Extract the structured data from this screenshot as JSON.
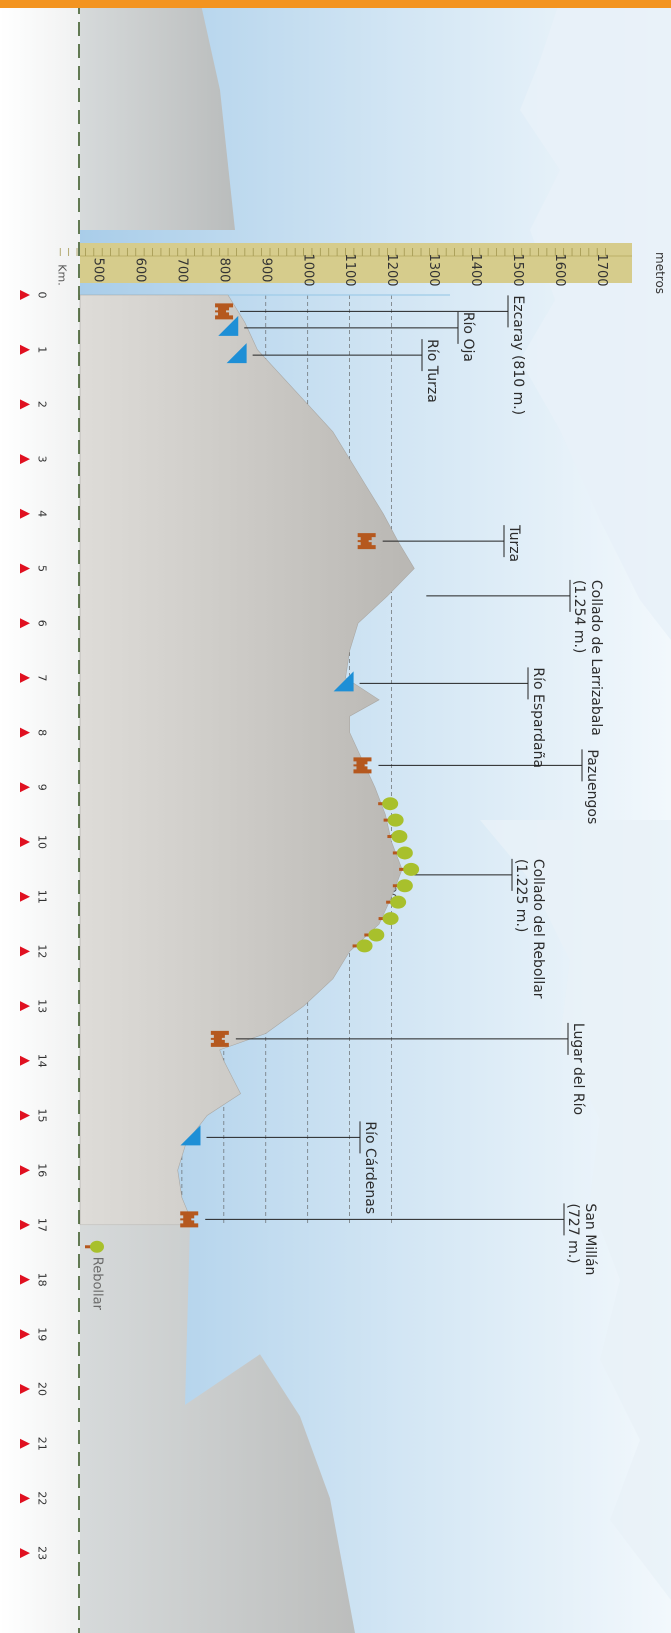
{
  "chart_data": {
    "type": "area",
    "orientation": "rotated-90",
    "y_unit_label": "metros",
    "x_unit_label": "Km.",
    "ylim": [
      400,
      1750
    ],
    "xlim": [
      0,
      23.5
    ],
    "y_ticks": [
      500,
      600,
      700,
      800,
      900,
      1000,
      1100,
      1200,
      1300,
      1400,
      1500,
      1600,
      1700
    ],
    "inner_y_ticks": [
      500,
      600,
      700,
      800,
      900,
      1000,
      1100,
      1200
    ],
    "x_ticks": [
      0,
      1,
      2,
      3,
      4,
      5,
      6,
      7,
      8,
      9,
      10,
      11,
      12,
      13,
      14,
      15,
      16,
      17,
      18,
      19,
      20,
      21,
      22,
      23
    ],
    "gridlines": [
      500,
      600,
      700,
      800,
      900,
      1000,
      1100,
      1200
    ],
    "x": [
      0,
      0.5,
      1,
      1.5,
      2,
      2.5,
      3,
      3.5,
      4,
      4.5,
      5,
      5.5,
      6,
      6.5,
      7,
      7.4,
      7.7,
      8,
      8.5,
      9,
      9.5,
      10,
      10.5,
      11,
      11.5,
      12,
      12.5,
      13,
      13.5,
      13.8,
      14,
      14.3,
      14.6,
      15,
      15.5,
      16,
      16.5,
      17
    ],
    "elevation": [
      810,
      850,
      880,
      940,
      1000,
      1060,
      1100,
      1140,
      1180,
      1215,
      1254,
      1190,
      1120,
      1100,
      1090,
      1170,
      1100,
      1100,
      1130,
      1160,
      1185,
      1200,
      1225,
      1200,
      1170,
      1100,
      1060,
      990,
      900,
      790,
      800,
      820,
      840,
      760,
      710,
      690,
      700,
      727
    ],
    "annotations": [
      {
        "text": "Ezcaray (810 m.)",
        "km": 0.3,
        "elev": 810,
        "icon": "town"
      },
      {
        "text": "Río Oja",
        "km": 0.6,
        "elev": 820,
        "icon": "river"
      },
      {
        "text": "Río Turza",
        "km": 1.1,
        "elev": 840,
        "icon": "river"
      },
      {
        "text": "Turza",
        "km": 4.5,
        "elev": 1150,
        "icon": "town"
      },
      {
        "text": "Collado de Larrizabala",
        "text2": "(1.254 m.)",
        "km": 5.5,
        "elev": 1254,
        "icon": "pass"
      },
      {
        "text": "Río Espardaña",
        "km": 7.1,
        "elev": 1095,
        "icon": "river"
      },
      {
        "text": "Pazuengos",
        "km": 8.6,
        "elev": 1140,
        "icon": "town"
      },
      {
        "text": "Collado del Rebollar",
        "text2": "(1.225 m.)",
        "km": 10.6,
        "elev": 1225,
        "icon": "pass"
      },
      {
        "text": "Lugar del Río",
        "km": 13.6,
        "elev": 800,
        "icon": "town"
      },
      {
        "text": "Río Cárdenas",
        "km": 15.4,
        "elev": 730,
        "icon": "river"
      },
      {
        "text": "San Millán",
        "text2": "(727 m.)",
        "km": 16.9,
        "elev": 727,
        "icon": "town"
      }
    ],
    "forest_km": [
      9.3,
      9.6,
      9.9,
      10.2,
      10.5,
      10.8,
      11.1,
      11.4,
      11.7,
      11.9
    ],
    "legend": {
      "label": "Rebollar",
      "icon": "oak-tree"
    }
  },
  "colors": {
    "sky": "#c8dff0",
    "mountain": "#9dc4e4",
    "profile": "#c6c4c0",
    "ruler": "#d6cc8c",
    "town": "#b5581e",
    "river": "#1e8fd6",
    "tree": "#a8c02c",
    "km_marker": "#e01020",
    "label_line": "#222222",
    "top_bar": "#f39420"
  }
}
